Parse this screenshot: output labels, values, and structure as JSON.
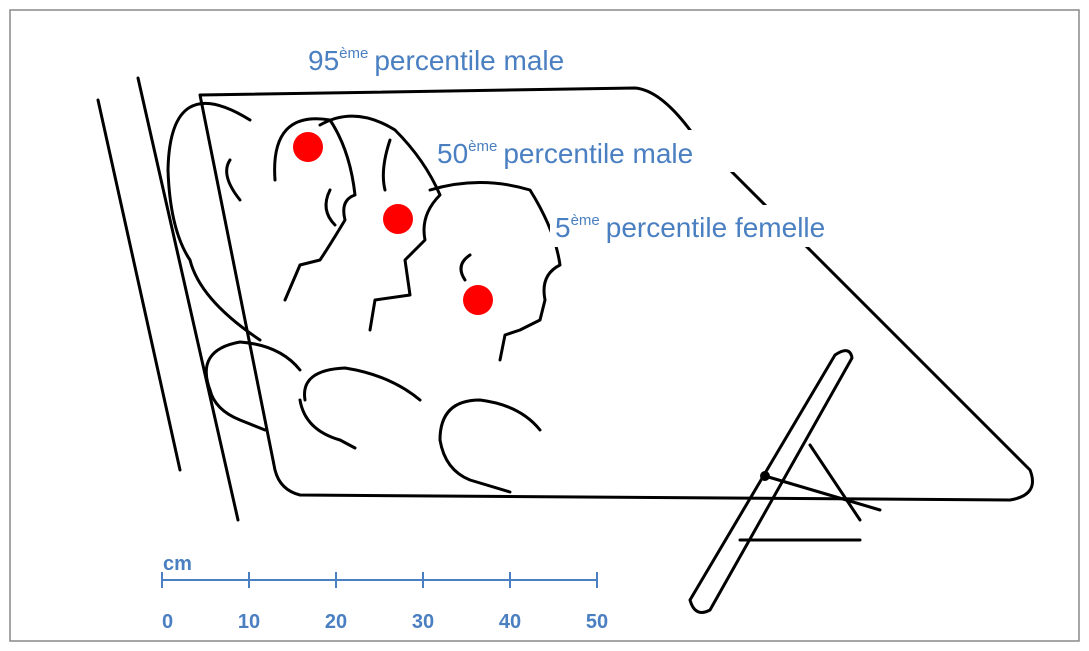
{
  "labels": [
    {
      "number": "95",
      "superscript": "ème",
      "text": "percentile male"
    },
    {
      "number": "50",
      "superscript": "ème",
      "text": "percentile male"
    },
    {
      "number": "5",
      "superscript": "ème",
      "text": "percentile femelle"
    }
  ],
  "scale": {
    "unit": "cm",
    "ticks": [
      0,
      10,
      20,
      30,
      40,
      50
    ]
  }
}
